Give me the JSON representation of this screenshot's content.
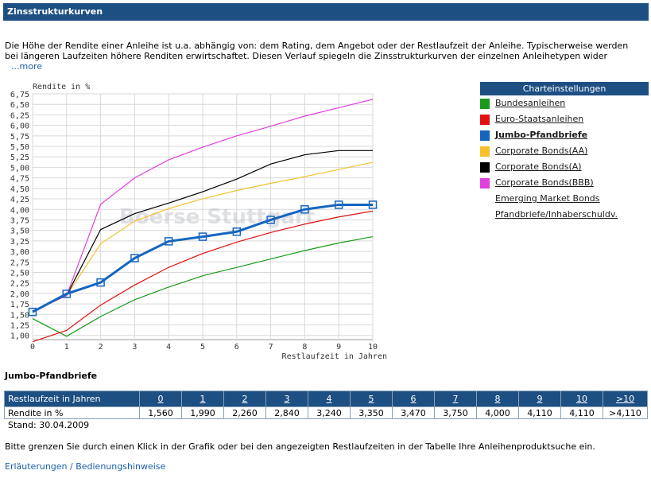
{
  "header": {
    "title": "Zinsstrukturkurven"
  },
  "intro": {
    "text": "Die Höhe der Rendite einer Anleihe ist u.a. abhängig von: dem Rating, dem Angebot oder der Restlaufzeit der Anleihe. Typischerweise werden bei längeren Laufzeiten höhere Renditen erwirtschaftet. Diesen Verlauf spiegeln die Zinsstrukturkurven der einzelnen Anleihetypen wider",
    "more_link": "...more"
  },
  "chart_data": {
    "type": "line",
    "ylabel": "Rendite in %",
    "xlabel": "Restlaufzeit in Jahren",
    "watermark": "Boerse Stuttgart",
    "x": [
      0,
      1,
      2,
      3,
      4,
      5,
      6,
      7,
      8,
      9,
      10
    ],
    "xlim": [
      0,
      10
    ],
    "ylim": [
      0.9,
      6.75
    ],
    "y_ticks": [
      "1,00",
      "1,25",
      "1,50",
      "1,75",
      "2,00",
      "2,25",
      "2,50",
      "2,75",
      "3,00",
      "3,25",
      "3,50",
      "3,75",
      "4,00",
      "4,25",
      "4,50",
      "4,75",
      "5,00",
      "5,25",
      "5,50",
      "5,75",
      "6,00",
      "6,25",
      "6,50",
      "6,75"
    ],
    "x_ticks": [
      "0",
      "1",
      "2",
      "3",
      "4",
      "5",
      "6",
      "7",
      "8",
      "9",
      "10"
    ],
    "grid": true,
    "series": [
      {
        "name": "Bundesanleihen",
        "color": "#1a9a1a",
        "highlight": false,
        "values": [
          1.4,
          0.98,
          1.45,
          1.85,
          2.15,
          2.42,
          2.62,
          2.82,
          3.02,
          3.2,
          3.35
        ]
      },
      {
        "name": "Euro-Staatsanleihen",
        "color": "#e01010",
        "highlight": false,
        "values": [
          0.85,
          1.12,
          1.72,
          2.2,
          2.62,
          2.95,
          3.22,
          3.45,
          3.65,
          3.82,
          3.96
        ]
      },
      {
        "name": "Corporate Bonds(AA)",
        "color": "#f5c02a",
        "highlight": false,
        "values": [
          1.58,
          1.95,
          3.18,
          3.72,
          4.02,
          4.25,
          4.45,
          4.62,
          4.78,
          4.95,
          5.12
        ]
      },
      {
        "name": "Corporate Bonds(A)",
        "color": "#000000",
        "highlight": false,
        "values": [
          1.58,
          1.95,
          3.52,
          3.9,
          4.15,
          4.42,
          4.72,
          5.08,
          5.3,
          5.4,
          5.4
        ]
      },
      {
        "name": "Corporate Bonds(BBB)",
        "color": "#e040e0",
        "highlight": false,
        "values": [
          1.58,
          1.95,
          4.12,
          4.75,
          5.18,
          5.48,
          5.75,
          5.98,
          6.22,
          6.42,
          6.62
        ]
      },
      {
        "name": "Jumbo-Pfandbriefe",
        "color": "#1565c0",
        "highlight": true,
        "values": [
          1.56,
          1.99,
          2.26,
          2.84,
          3.24,
          3.35,
          3.47,
          3.75,
          4.0,
          4.11,
          4.11
        ]
      }
    ]
  },
  "settings": {
    "title": "Charteinstellungen",
    "items": [
      {
        "label": "Bundesanleihen",
        "color": "#1a9a1a",
        "active": false
      },
      {
        "label": "Euro-Staatsanleihen",
        "color": "#e01010",
        "active": false
      },
      {
        "label": "Jumbo-Pfandbriefe",
        "color": "#1565c0",
        "active": true
      },
      {
        "label": "Corporate Bonds(AA)",
        "color": "#f5c02a",
        "active": false
      },
      {
        "label": "Corporate Bonds(A)",
        "color": "#000000",
        "active": false
      },
      {
        "label": "Corporate Bonds(BBB)",
        "color": "#e040e0",
        "active": false
      },
      {
        "label": "Emerging Market Bonds",
        "color": "",
        "active": false
      },
      {
        "label": "Pfandbriefe/Inhaberschuldv.",
        "color": "",
        "active": false
      }
    ]
  },
  "table": {
    "title": "Jumbo-Pfandbriefe",
    "header_label": "Restlaufzeit in Jahren",
    "row_label": "Rendite in %",
    "columns": [
      "0",
      "1",
      "2",
      "3",
      "4",
      "5",
      "6",
      "7",
      "8",
      "9",
      "10",
      ">10"
    ],
    "values": [
      "1,560",
      "1,990",
      "2,260",
      "2,840",
      "3,240",
      "3,350",
      "3,470",
      "3,750",
      "4,000",
      "4,110",
      "4,110",
      ">4,110"
    ],
    "stand": "Stand: 30.04.2009"
  },
  "footer": {
    "note": "Bitte grenzen Sie durch einen Klick in der Grafik oder bei den angezeigten Restlaufzeiten in der Tabelle Ihre Anleihenproduktsuche ein.",
    "help_link": "Erläuterungen / Bedienungshinweise"
  }
}
